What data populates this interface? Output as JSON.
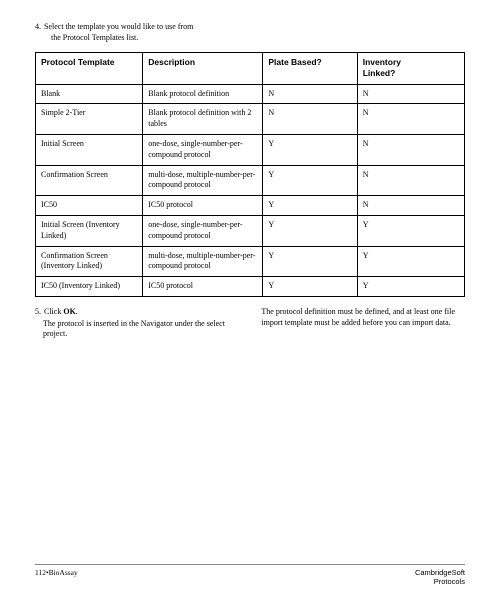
{
  "step4": {
    "number": "4.",
    "line1": "Select the template you would like to use from",
    "line2": "the Protocol Templates list."
  },
  "table": {
    "headers": {
      "col1": "Protocol Template",
      "col2": "Description",
      "col3": "Plate Based?",
      "col4_line1": "Inventory",
      "col4_line2": "Linked?"
    },
    "rows": [
      {
        "c1": "Blank",
        "c2": "Blank protocol definition",
        "c3": "N",
        "c4": "N"
      },
      {
        "c1": "Simple 2-Tier",
        "c2": "Blank protocol definition with 2 tables",
        "c3": "N",
        "c4": "N"
      },
      {
        "c1": "Initial Screen",
        "c2": "one-dose, single-number-per-compound protocol",
        "c3": "Y",
        "c4": "N"
      },
      {
        "c1": "Confirmation Screen",
        "c2": "multi-dose, multiple-number-per-compound protocol",
        "c3": "Y",
        "c4": "N"
      },
      {
        "c1": "IC50",
        "c2": "IC50 protocol",
        "c3": "Y",
        "c4": "N"
      },
      {
        "c1": "Initial Screen (Inventory Linked)",
        "c2": "one-dose, single-number-per-compound protocol",
        "c3": "Y",
        "c4": "Y"
      },
      {
        "c1": "Confirmation Screen (Inventory Linked)",
        "c2": "multi-dose, multiple-number-per-compound protocol",
        "c3": "Y",
        "c4": "Y"
      },
      {
        "c1": "IC50 (Inventory Linked)",
        "c2": "IC50 protocol",
        "c3": "Y",
        "c4": "Y"
      }
    ]
  },
  "step5": {
    "number": "5.",
    "text_prefix": "Click ",
    "text_bold": "OK",
    "text_suffix": ".",
    "body": "The protocol is inserted in the Navigator under the select project."
  },
  "right_note": "The protocol definition must be defined, and at least one file import template must be added before you can import data.",
  "footer": {
    "left": "112•BioAssay",
    "right_line1": "CambridgeSoft",
    "right_line2": "Protocols"
  }
}
